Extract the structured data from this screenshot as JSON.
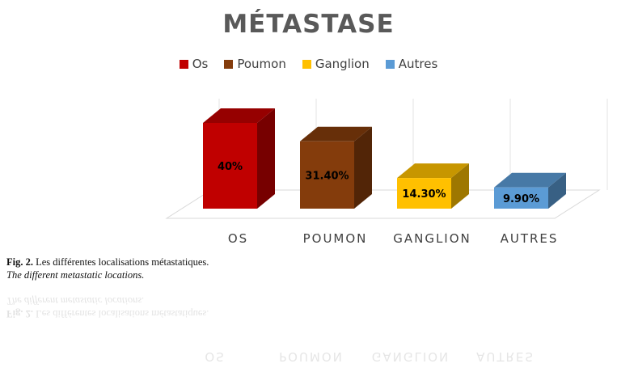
{
  "chart_data": {
    "type": "bar",
    "title": "MÉTASTASE",
    "categories": [
      "OS",
      "POUMON",
      "GANGLION",
      "AUTRES"
    ],
    "series": [
      {
        "name": "Os",
        "value": 40,
        "label": "40%",
        "color": "#c00000"
      },
      {
        "name": "Poumon",
        "value": 31.4,
        "label": "31.40%",
        "color": "#843c0c"
      },
      {
        "name": "Ganglion",
        "value": 14.3,
        "label": "14.30%",
        "color": "#ffc000"
      },
      {
        "name": "Autres",
        "value": 9.9,
        "label": "9.90%",
        "color": "#5b9bd5"
      }
    ],
    "ylim": [
      0,
      40
    ],
    "grid": true,
    "legend": "top"
  },
  "caption": {
    "fig_label": "Fig. 2.",
    "french": " Les différentes localisations métastatiques.",
    "english": "The different metastatic locations."
  }
}
